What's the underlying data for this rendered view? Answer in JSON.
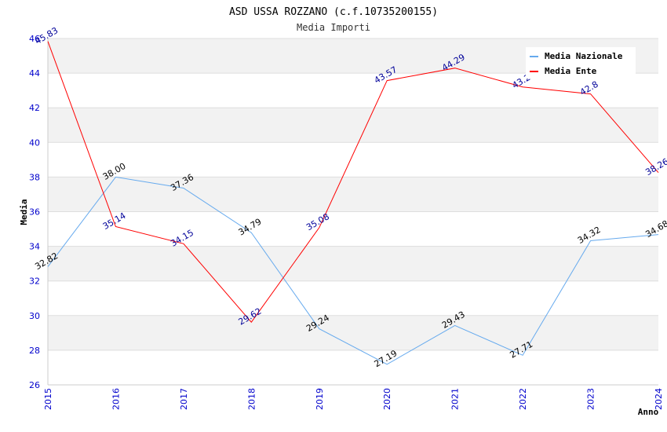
{
  "chart_data": {
    "type": "line",
    "title": "ASD USSA ROZZANO (c.f.10735200155)",
    "subtitle": "Media Importi",
    "xlabel": "Anno",
    "ylabel": "Media",
    "x": [
      "2015",
      "2016",
      "2017",
      "2018",
      "2019",
      "2020",
      "2021",
      "2022",
      "2023",
      "2024"
    ],
    "ylim": [
      26,
      46
    ],
    "yticks": [
      26,
      28,
      30,
      32,
      34,
      36,
      38,
      40,
      42,
      44,
      46
    ],
    "grid": true,
    "legend_position": "top-right",
    "series": [
      {
        "name": "Media Nazionale",
        "color": "#66aaee",
        "label_color": "#000000",
        "values": [
          32.82,
          38.0,
          37.36,
          34.79,
          29.24,
          27.19,
          29.43,
          27.71,
          34.32,
          34.68
        ],
        "labels": [
          "32.82",
          "38.00",
          "37.36",
          "34.79",
          "29.24",
          "27.19",
          "29.43",
          "27.71",
          "34.32",
          "34.68"
        ]
      },
      {
        "name": "Media Ente",
        "color": "#ff0000",
        "label_color": "#000099",
        "values": [
          45.83,
          35.14,
          34.15,
          29.62,
          35.08,
          43.57,
          44.29,
          43.2,
          42.8,
          38.26
        ],
        "labels": [
          "45.83",
          "35.14",
          "34.15",
          "29.62",
          "35.08",
          "43.57",
          "44.29",
          "43.2",
          "42.8",
          "38.26"
        ]
      }
    ]
  },
  "colors": {
    "tick_color": "#0000cc",
    "band_color": "#f2f2f2",
    "grid_color": "#dddddd"
  }
}
